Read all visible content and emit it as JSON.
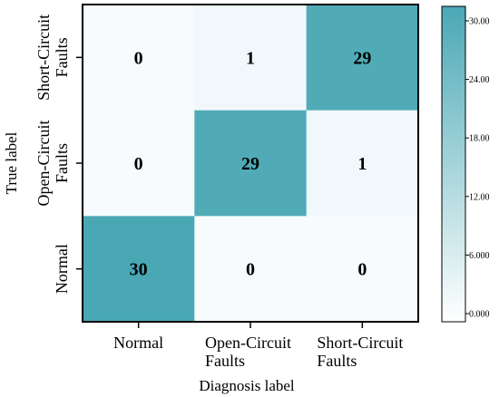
{
  "chart_data": {
    "type": "heatmap",
    "title": "",
    "xlabel": "Diagnosis label",
    "ylabel": "True label",
    "x_categories": [
      [
        "Normal"
      ],
      [
        "Open-Circuit",
        "Faults"
      ],
      [
        "Short-Circuit",
        "Faults"
      ]
    ],
    "y_categories_top_to_bottom": [
      [
        "Short-Circuit",
        "Faults"
      ],
      [
        "Open-Circuit",
        "Faults"
      ],
      [
        "Normal"
      ]
    ],
    "values_top_to_bottom": [
      [
        0,
        1,
        29
      ],
      [
        0,
        29,
        1
      ],
      [
        30,
        0,
        0
      ]
    ],
    "value_range": [
      0,
      30
    ],
    "colorbar": {
      "ticks": [
        "0.000",
        "6.000",
        "12.00",
        "18.00",
        "24.00",
        "30.00"
      ],
      "tick_values": [
        0,
        6,
        12,
        18,
        24,
        30
      ],
      "color_low": "#f7fbfd",
      "color_high": "#4aa8b5"
    },
    "grid": false
  }
}
